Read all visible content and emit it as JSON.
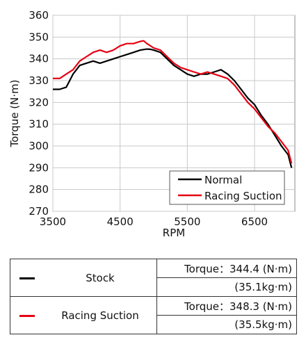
{
  "chart_data": {
    "type": "line",
    "xlabel": "RPM",
    "ylabel": "Torque (N·m)",
    "xlim": [
      3500,
      7100
    ],
    "ylim": [
      270,
      360
    ],
    "xticks": [
      3500,
      4500,
      5500,
      6500
    ],
    "yticks": [
      270,
      280,
      290,
      300,
      310,
      320,
      330,
      340,
      350,
      360
    ],
    "grid": true,
    "legend_position": "bottom-right",
    "series": [
      {
        "name": "Normal",
        "color": "#000000",
        "x": [
          3500,
          3600,
          3700,
          3750,
          3800,
          3900,
          4000,
          4100,
          4200,
          4300,
          4400,
          4500,
          4600,
          4700,
          4800,
          4900,
          4950,
          5000,
          5100,
          5200,
          5300,
          5400,
          5500,
          5600,
          5700,
          5800,
          5900,
          6000,
          6100,
          6200,
          6300,
          6400,
          6500,
          6600,
          6700,
          6800,
          6900,
          7000,
          7050
        ],
        "y": [
          326,
          326,
          327,
          330,
          333,
          337,
          338,
          339,
          338,
          339,
          340,
          341,
          342,
          343,
          344,
          344.5,
          344.4,
          344,
          343,
          340,
          337,
          335,
          333,
          332,
          333,
          333,
          334,
          335,
          333,
          330,
          326,
          322,
          319,
          314,
          310,
          305,
          300,
          296,
          290
        ]
      },
      {
        "name": "Racing Suction",
        "color": "#e60012",
        "x": [
          3500,
          3600,
          3700,
          3800,
          3900,
          4000,
          4100,
          4200,
          4300,
          4400,
          4500,
          4600,
          4700,
          4800,
          4850,
          4900,
          5000,
          5100,
          5200,
          5300,
          5400,
          5500,
          5600,
          5700,
          5800,
          5900,
          6000,
          6100,
          6200,
          6300,
          6400,
          6500,
          6600,
          6700,
          6800,
          6900,
          7000,
          7050
        ],
        "y": [
          331,
          331,
          333,
          335,
          339,
          341,
          343,
          344,
          343,
          344,
          346,
          347,
          347,
          348,
          348.3,
          347,
          345,
          344,
          341,
          338,
          336,
          335,
          334,
          333,
          334,
          333,
          332,
          331,
          328,
          324,
          320,
          317,
          313,
          309,
          306,
          302,
          298,
          292
        ]
      }
    ]
  },
  "table": {
    "rows": [
      {
        "name": "Stock",
        "color": "#000000",
        "torque": "Torque：344.4 (N·m)",
        "kgm": "(35.1kg·m)"
      },
      {
        "name": "Racing Suction",
        "color": "#e60012",
        "torque": "Torque：348.3 (N·m)",
        "kgm": "(35.5kg·m)"
      }
    ]
  }
}
